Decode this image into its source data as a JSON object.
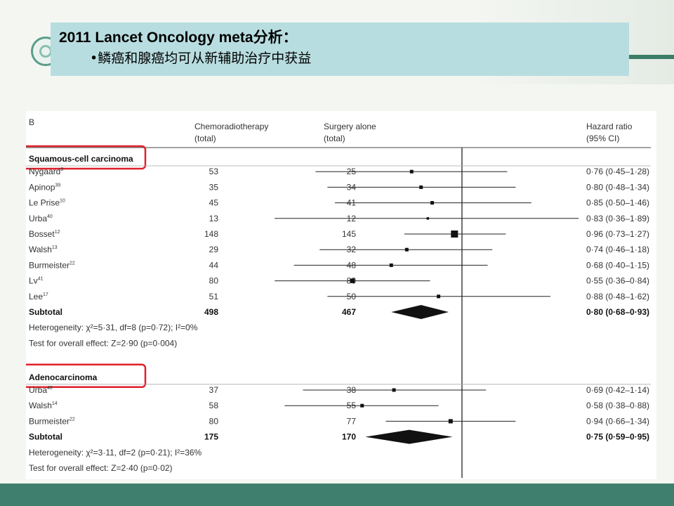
{
  "slide": {
    "title": "2011 Lancet Oncology meta分析：",
    "bullet": "•鳞癌和腺癌均可从新辅助治疗中获益",
    "colors": {
      "title_bg": "#b8dde0",
      "bottom_bar": "#3f7f6d",
      "highlight_box": "#e0202a"
    }
  },
  "chart_data": {
    "type": "forest",
    "panel_label": "B",
    "headers": {
      "col1_line1": "Chemoradiotherapy",
      "col1_line2": "(total)",
      "col2_line1": "Surgery alone",
      "col2_line2": "(total)",
      "col3_line1": "Hazard ratio",
      "col3_line2": "(95% CI)"
    },
    "reference_value": 1.0,
    "groups": [
      {
        "name": "Squamous-cell carcinoma",
        "highlighted": true,
        "studies": [
          {
            "name": "Nygaard",
            "ref": "9",
            "crt": "53",
            "surgery": "25",
            "hr": 0.76,
            "lo": 0.45,
            "hi": 1.28,
            "label": "0·76 (0·45–1·28)",
            "weight": 1
          },
          {
            "name": "Apinop",
            "ref": "39",
            "crt": "35",
            "surgery": "34",
            "hr": 0.8,
            "lo": 0.48,
            "hi": 1.34,
            "label": "0·80 (0·48–1·34)",
            "weight": 1
          },
          {
            "name": "Le Prise",
            "ref": "10",
            "crt": "45",
            "surgery": "41",
            "hr": 0.85,
            "lo": 0.5,
            "hi": 1.46,
            "label": "0·85 (0·50–1·46)",
            "weight": 1
          },
          {
            "name": "Urba",
            "ref": "40",
            "crt": "13",
            "surgery": "12",
            "hr": 0.83,
            "lo": 0.36,
            "hi": 1.89,
            "label": "0·83 (0·36–1·89)",
            "weight": 0.7
          },
          {
            "name": "Bosset",
            "ref": "12",
            "crt": "148",
            "surgery": "145",
            "hr": 0.96,
            "lo": 0.73,
            "hi": 1.27,
            "label": "0·96 (0·73–1·27)",
            "weight": 2
          },
          {
            "name": "Walsh",
            "ref": "13",
            "crt": "29",
            "surgery": "32",
            "hr": 0.74,
            "lo": 0.46,
            "hi": 1.18,
            "label": "0·74 (0·46–1·18)",
            "weight": 1
          },
          {
            "name": "Burmeister",
            "ref": "22",
            "crt": "44",
            "surgery": "48",
            "hr": 0.68,
            "lo": 0.4,
            "hi": 1.15,
            "label": "0·68 (0·40–1·15)",
            "weight": 1
          },
          {
            "name": "Lv",
            "ref": "41",
            "crt": "80",
            "surgery": "80",
            "hr": 0.55,
            "lo": 0.36,
            "hi": 0.84,
            "label": "0·55 (0·36–0·84)",
            "weight": 1.3
          },
          {
            "name": "Lee",
            "ref": "17",
            "crt": "51",
            "surgery": "50",
            "hr": 0.88,
            "lo": 0.48,
            "hi": 1.62,
            "label": "0·88 (0·48–1·62)",
            "weight": 1
          }
        ],
        "subtotal": {
          "name": "Subtotal",
          "crt": "498",
          "surgery": "467",
          "hr": 0.8,
          "lo": 0.68,
          "hi": 0.93,
          "label": "0·80 (0·68–0·93)"
        },
        "heterogeneity": "Heterogeneity: χ²=5·31, df=8 (p=0·72); I²=0%",
        "overall_effect": "Test for overall effect: Z=2·90 (p=0·004)"
      },
      {
        "name": "Adenocarcinoma",
        "highlighted": true,
        "studies": [
          {
            "name": "Urba",
            "ref": "40",
            "crt": "37",
            "surgery": "38",
            "hr": 0.69,
            "lo": 0.42,
            "hi": 1.14,
            "label": "0·69 (0·42–1·14)",
            "weight": 1
          },
          {
            "name": "Walsh",
            "ref": "14",
            "crt": "58",
            "surgery": "55",
            "hr": 0.58,
            "lo": 0.38,
            "hi": 0.88,
            "label": "0·58 (0·38–0·88)",
            "weight": 1
          },
          {
            "name": "Burmeister",
            "ref": "22",
            "crt": "80",
            "surgery": "77",
            "hr": 0.94,
            "lo": 0.66,
            "hi": 1.34,
            "label": "0·94 (0·66–1·34)",
            "weight": 1.2
          }
        ],
        "subtotal": {
          "name": "Subtotal",
          "crt": "175",
          "surgery": "170",
          "hr": 0.75,
          "lo": 0.59,
          "hi": 0.95,
          "label": "0·75 (0·59–0·95)"
        },
        "heterogeneity": "Heterogeneity: χ²=3·11, df=2 (p=0·21); I²=36%",
        "overall_effect": "Test for overall effect: Z=2·40 (p=0·02)"
      }
    ]
  }
}
